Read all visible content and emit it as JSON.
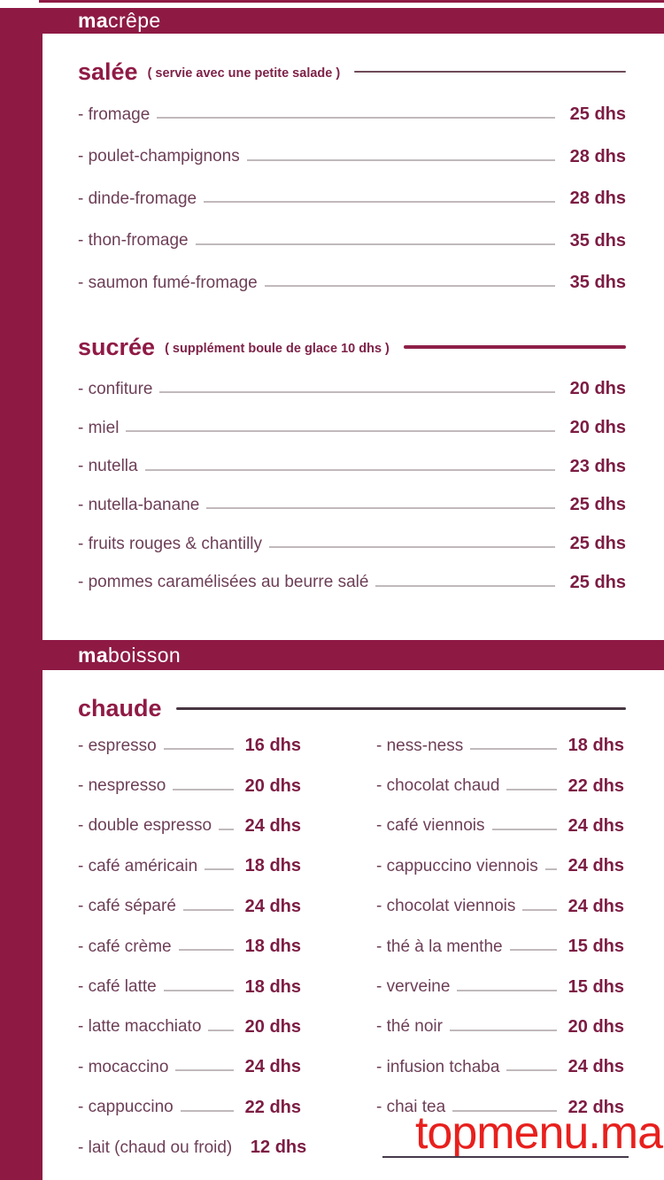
{
  "colors": {
    "accent": "#8e1a44",
    "item_text": "#6d3f57",
    "price_text": "#7c1c43",
    "watermark": "#e8201d"
  },
  "banners": {
    "crepe": {
      "prefix": "ma",
      "rest": "crêpe"
    },
    "boisson": {
      "prefix": "ma",
      "rest": "boisson"
    }
  },
  "sections": {
    "salee": {
      "title": "salée",
      "note": "( servie avec une petite salade )",
      "items": [
        {
          "name": "- fromage",
          "price": "25 dhs"
        },
        {
          "name": "- poulet-champignons",
          "price": "28 dhs"
        },
        {
          "name": "- dinde-fromage",
          "price": "28 dhs"
        },
        {
          "name": "- thon-fromage",
          "price": "35 dhs"
        },
        {
          "name": "- saumon fumé-fromage",
          "price": "35 dhs"
        }
      ]
    },
    "sucree": {
      "title": "sucrée",
      "note": "( supplément boule de glace 10 dhs )",
      "items": [
        {
          "name": "- confiture",
          "price": "20 dhs"
        },
        {
          "name": "- miel",
          "price": "20 dhs"
        },
        {
          "name": "- nutella",
          "price": "23 dhs"
        },
        {
          "name": "- nutella-banane",
          "price": "25 dhs"
        },
        {
          "name": "- fruits rouges & chantilly",
          "price": "25 dhs"
        },
        {
          "name": "- pommes caramélisées au beurre salé",
          "price": "25 dhs"
        }
      ]
    },
    "chaude": {
      "title": "chaude",
      "items_left": [
        {
          "name": "- espresso",
          "price": "16 dhs"
        },
        {
          "name": "- nespresso",
          "price": "20 dhs"
        },
        {
          "name": "- double espresso",
          "price": "24 dhs"
        },
        {
          "name": "- café américain",
          "price": "18 dhs"
        },
        {
          "name": "- café séparé",
          "price": "24 dhs"
        },
        {
          "name": "- café crème",
          "price": "18 dhs"
        },
        {
          "name": "- café latte",
          "price": "18 dhs"
        },
        {
          "name": "- latte macchiato",
          "price": "20 dhs"
        },
        {
          "name": "- mocaccino",
          "price": "24 dhs"
        },
        {
          "name": "- cappuccino",
          "price": "22 dhs"
        },
        {
          "name": "- lait (chaud ou froid)",
          "price": "12 dhs"
        }
      ],
      "items_right": [
        {
          "name": "- ness-ness",
          "price": "18 dhs"
        },
        {
          "name": "- chocolat chaud",
          "price": "22 dhs"
        },
        {
          "name": "- café viennois",
          "price": "24 dhs"
        },
        {
          "name": "- cappuccino viennois",
          "price": "24 dhs"
        },
        {
          "name": "- chocolat viennois",
          "price": "24 dhs"
        },
        {
          "name": "- thé à la menthe",
          "price": "15 dhs"
        },
        {
          "name": "- verveine",
          "price": "15 dhs"
        },
        {
          "name": "- thé noir",
          "price": "20 dhs"
        },
        {
          "name": "- infusion tchaba",
          "price": "24 dhs"
        },
        {
          "name": "- chai tea",
          "price": "22 dhs"
        }
      ]
    }
  },
  "watermark": "topmenu.ma"
}
